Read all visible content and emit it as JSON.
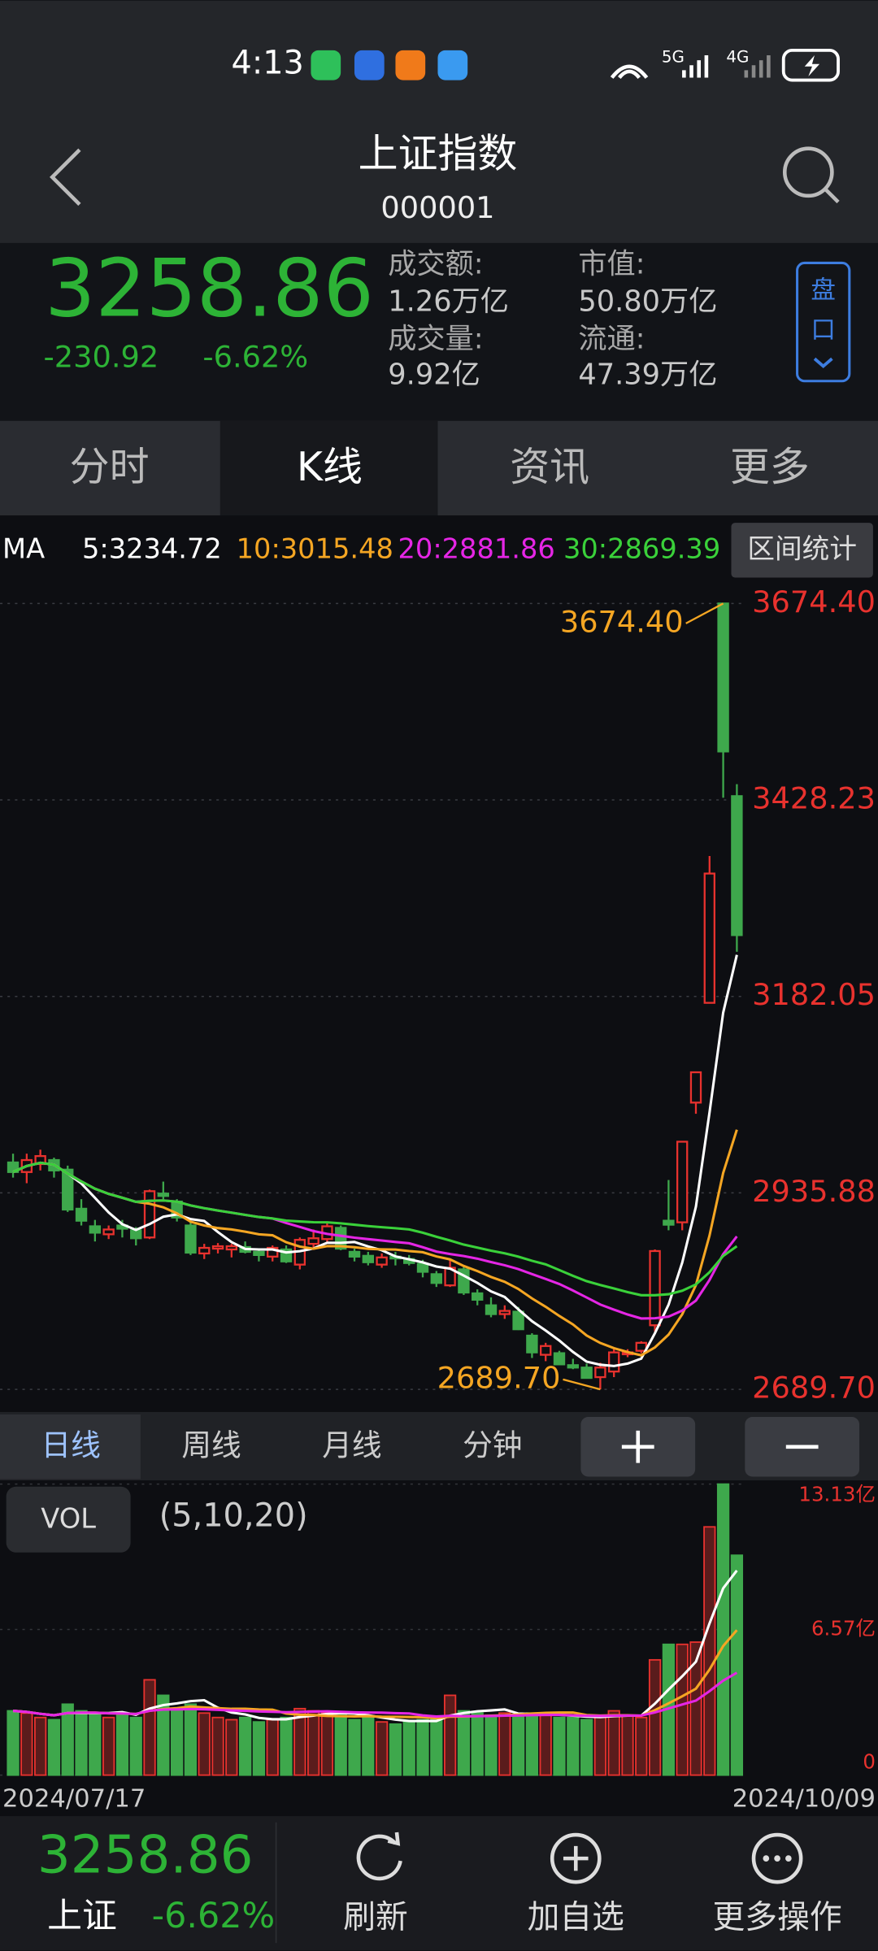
{
  "status_bar": {
    "time": "4:13",
    "net1": "5G",
    "net2": "4G"
  },
  "header": {
    "title": "上证指数",
    "code": "000001"
  },
  "quote": {
    "price": "3258.86",
    "change": "-230.92",
    "change_pct": "-6.62%",
    "turnover_label": "成交额:",
    "turnover": "1.26万亿",
    "volume_label": "成交量:",
    "volume": "9.92亿",
    "mcap_label": "市值:",
    "mcap": "50.80万亿",
    "float_label": "流通:",
    "float": "47.39万亿",
    "button": [
      "盘",
      "口"
    ]
  },
  "tabs": [
    "分时",
    "K线",
    "资讯",
    "更多"
  ],
  "ma_legend": {
    "label": "MA",
    "items": [
      {
        "text": "5:3234.72",
        "color": "#ffffff"
      },
      {
        "text": "10:3015.48",
        "color": "#f5a623"
      },
      {
        "text": "20:2881.86",
        "color": "#e526e5"
      },
      {
        "text": "30:2869.39",
        "color": "#3ad13a"
      }
    ]
  },
  "stats_button": "区间统计",
  "chart_data": {
    "type": "candlestick",
    "categories": [
      "2024/07/17",
      null,
      null,
      null,
      null,
      null,
      null,
      null,
      null,
      null,
      null,
      null,
      null,
      null,
      null,
      null,
      null,
      null,
      null,
      null,
      null,
      null,
      null,
      null,
      null,
      null,
      null,
      null,
      null,
      null,
      null,
      null,
      null,
      null,
      null,
      null,
      null,
      null,
      null,
      null,
      null,
      null,
      null,
      null,
      null,
      null,
      null,
      null,
      null,
      null,
      null,
      null,
      null,
      "2024/10/09"
    ],
    "open": [
      2974,
      2962,
      2972,
      2977,
      2965,
      2916,
      2894,
      2884,
      2895,
      2889,
      2880,
      2935,
      2925,
      2895,
      2860,
      2866,
      2865,
      2868,
      2862,
      2856,
      2865,
      2846,
      2872,
      2878,
      2892,
      2862,
      2857,
      2846,
      2856,
      2853,
      2847,
      2834,
      2820,
      2840,
      2810,
      2795,
      2784,
      2787,
      2757,
      2733,
      2735,
      2720,
      2717,
      2705,
      2712,
      2734,
      2738,
      2770,
      2901,
      2899,
      3049,
      3174,
      3674.4,
      3433
    ],
    "high": [
      2985,
      2985,
      2990,
      2980,
      2970,
      2928,
      2902,
      2895,
      2902,
      2893,
      2940,
      2950,
      2928,
      2900,
      2872,
      2873,
      2872,
      2875,
      2865,
      2870,
      2870,
      2880,
      2890,
      2900,
      2895,
      2866,
      2862,
      2860,
      2862,
      2858,
      2852,
      2838,
      2852,
      2843,
      2815,
      2805,
      2795,
      2793,
      2760,
      2748,
      2738,
      2728,
      2722,
      2723,
      2740,
      2740,
      2750,
      2865,
      2952,
      3000,
      3088,
      3358,
      3674.4,
      3448
    ],
    "low": [
      2955,
      2948,
      2964,
      2955,
      2912,
      2895,
      2875,
      2878,
      2880,
      2870,
      2878,
      2928,
      2900,
      2858,
      2853,
      2860,
      2855,
      2860,
      2850,
      2850,
      2848,
      2840,
      2868,
      2874,
      2864,
      2850,
      2845,
      2842,
      2845,
      2845,
      2830,
      2818,
      2818,
      2808,
      2795,
      2780,
      2778,
      2764,
      2729,
      2725,
      2720,
      2715,
      2703,
      2689.7,
      2705,
      2730,
      2735,
      2762,
      2889,
      2889,
      3035,
      3174,
      3431,
      3238
    ],
    "close": [
      2962,
      2977,
      2982,
      2964,
      2915,
      2901,
      2886,
      2890,
      2891,
      2879,
      2938,
      2932,
      2905,
      2861,
      2867,
      2869,
      2869,
      2862,
      2858,
      2867,
      2850,
      2877,
      2879,
      2894,
      2866,
      2856,
      2849,
      2855,
      2855,
      2848,
      2837,
      2823,
      2842,
      2811,
      2802,
      2784,
      2788,
      2765,
      2736,
      2744,
      2721,
      2717,
      2704,
      2717,
      2736,
      2736,
      2748,
      2863,
      2896,
      3000,
      3087,
      3336,
      3489,
      3258.86
    ],
    "up_color": "#e8322e",
    "down_color": "#3ea84c",
    "ylim": [
      2666,
      3710
    ],
    "yticks": [
      {
        "value": 3674.4,
        "label": "3674.40"
      },
      {
        "value": 3428.23,
        "label": "3428.23"
      },
      {
        "value": 3182.05,
        "label": "3182.05"
      },
      {
        "value": 2935.88,
        "label": "2935.88"
      },
      {
        "value": 2689.7,
        "label": "2689.70"
      }
    ],
    "annotations": [
      {
        "value": 3674.4,
        "label": "3674.40"
      },
      {
        "value": 2689.7,
        "label": "2689.70"
      }
    ],
    "grid": true
  },
  "period_tabs": [
    "日线",
    "周线",
    "月线",
    "分钟"
  ],
  "volume": {
    "title": "VOL",
    "params": "(5,10,20)",
    "values": [
      2.9,
      2.8,
      2.6,
      2.5,
      3.2,
      2.9,
      2.8,
      2.6,
      2.7,
      2.6,
      4.3,
      3.6,
      3.0,
      3.2,
      2.8,
      2.6,
      2.5,
      2.6,
      2.4,
      2.5,
      2.6,
      3.0,
      2.9,
      2.8,
      2.7,
      2.5,
      2.6,
      2.4,
      2.3,
      2.4,
      2.5,
      2.6,
      3.6,
      2.9,
      2.8,
      2.7,
      2.8,
      2.7,
      2.8,
      2.7,
      2.6,
      2.6,
      2.5,
      2.7,
      2.9,
      2.7,
      2.6,
      5.2,
      5.9,
      5.9,
      6.0,
      11.2,
      13.13,
      9.92
    ],
    "ma_colors": [
      "#ffffff",
      "#f5a623",
      "#e526e5"
    ],
    "ylim": [
      0,
      13.13
    ],
    "yticks": [
      {
        "value": 13.13,
        "label": "13.13亿"
      },
      {
        "value": 6.57,
        "label": "6.57亿"
      },
      0
    ]
  },
  "footer": {
    "price": "3258.86",
    "name": "上证",
    "pct": "-6.62%",
    "actions": [
      "刷新",
      "加自选",
      "更多操作"
    ]
  }
}
